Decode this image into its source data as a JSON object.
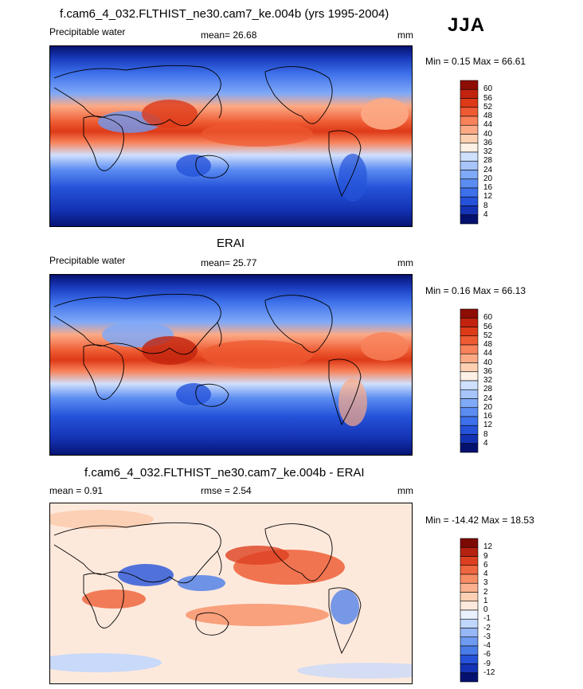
{
  "season": "JJA",
  "panels": [
    {
      "id": "model",
      "title": "f.cam6_4_032.FLTHIST_ne30.cam7_ke.004b (yrs 1995-2004)",
      "left_label": "Precipitable water",
      "stat_text": "mean=  26.68",
      "units": "mm",
      "minmax": "Min =   0.15 Max =  66.61",
      "colorbar_labels": [
        "60",
        "56",
        "52",
        "48",
        "44",
        "40",
        "36",
        "32",
        "28",
        "24",
        "20",
        "16",
        "12",
        "8",
        "4"
      ]
    },
    {
      "id": "obs",
      "title": "ERAI",
      "left_label": "Precipitable water",
      "stat_text": "mean=  25.77",
      "units": "mm",
      "minmax": "Min =   0.16 Max =  66.13",
      "colorbar_labels": [
        "60",
        "56",
        "52",
        "48",
        "44",
        "40",
        "36",
        "32",
        "28",
        "24",
        "20",
        "16",
        "12",
        "8",
        "4"
      ]
    },
    {
      "id": "diff",
      "title": "f.cam6_4_032.FLTHIST_ne30.cam7_ke.004b - ERAI",
      "left_label": "mean =   0.91",
      "stat_text": "rmse =   2.54",
      "units": "mm",
      "minmax": "Min = -14.42 Max =  18.53",
      "colorbar_labels": [
        "12",
        "9",
        "6",
        "4",
        "3",
        "2",
        "1",
        "0",
        "-1",
        "-2",
        "-3",
        "-4",
        "-6",
        "-9",
        "-12"
      ]
    }
  ],
  "colors": {
    "abs_scale": [
      "#05116e",
      "#1433b4",
      "#2552d9",
      "#3d70ea",
      "#5b8cf2",
      "#80a9f7",
      "#a7c5fb",
      "#cfe0fd",
      "#fdf0e4",
      "#fdd0b2",
      "#fcaa85",
      "#f8825a",
      "#ee5a32",
      "#dd3a18",
      "#c2230e",
      "#8e0d05"
    ],
    "diff_scale": [
      "#05116e",
      "#1433b4",
      "#2552d9",
      "#4a7ce9",
      "#6e9af1",
      "#97b8f7",
      "#c2d7fc",
      "#eaf1fe",
      "#fde9dc",
      "#fcd0b4",
      "#fbb18e",
      "#f78d64",
      "#ef6740",
      "#dd4020",
      "#b52210",
      "#7d0a04"
    ]
  },
  "chart_data": [
    {
      "type": "heatmap",
      "title": "f.cam6_4_032.FLTHIST_ne30.cam7_ke.004b (yrs 1995-2004)",
      "variable": "Precipitable water",
      "units": "mm",
      "season": "JJA",
      "mean": 26.68,
      "min": 0.15,
      "max": 66.61,
      "contour_levels": [
        4,
        8,
        12,
        16,
        20,
        24,
        28,
        32,
        36,
        40,
        44,
        48,
        52,
        56,
        60
      ]
    },
    {
      "type": "heatmap",
      "title": "ERAI",
      "variable": "Precipitable water",
      "units": "mm",
      "season": "JJA",
      "mean": 25.77,
      "min": 0.16,
      "max": 66.13,
      "contour_levels": [
        4,
        8,
        12,
        16,
        20,
        24,
        28,
        32,
        36,
        40,
        44,
        48,
        52,
        56,
        60
      ]
    },
    {
      "type": "heatmap",
      "title": "f.cam6_4_032.FLTHIST_ne30.cam7_ke.004b - ERAI",
      "units": "mm",
      "season": "JJA",
      "mean": 0.91,
      "rmse": 2.54,
      "min": -14.42,
      "max": 18.53,
      "contour_levels": [
        -12,
        -9,
        -6,
        -4,
        -3,
        -2,
        -1,
        0,
        1,
        2,
        3,
        4,
        6,
        9,
        12
      ]
    }
  ]
}
